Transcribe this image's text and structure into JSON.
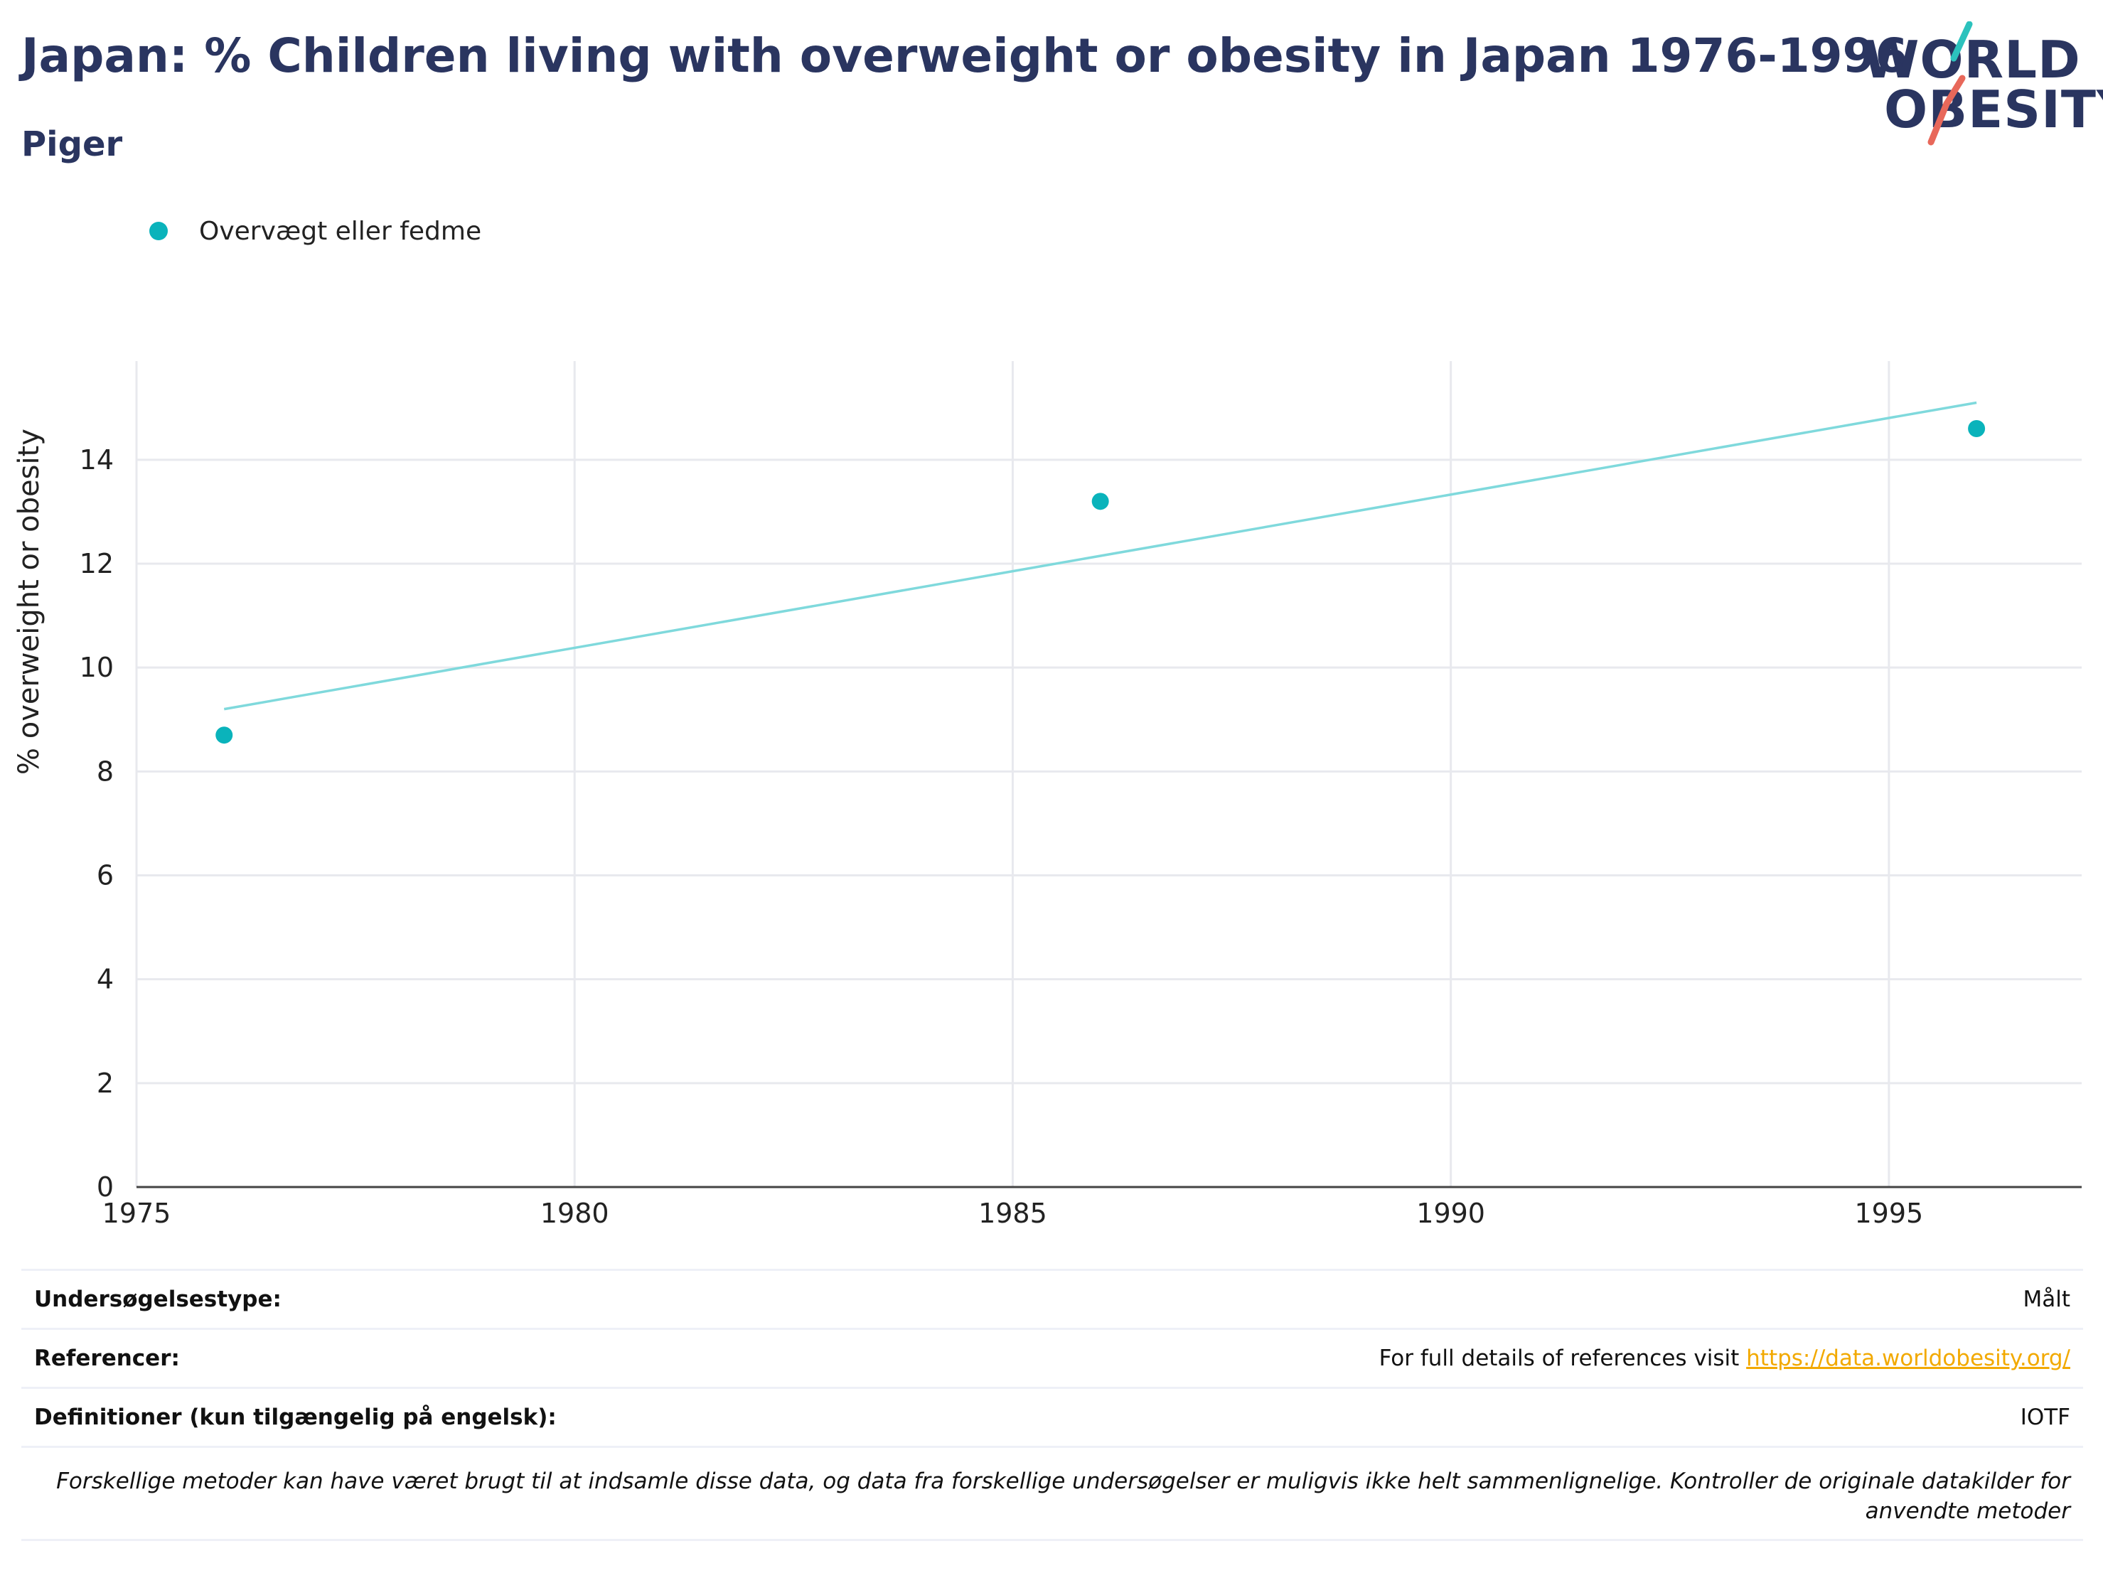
{
  "header": {
    "title": "Japan: % Children living with overweight or obesity in Japan 1976-1996",
    "subtitle": "Piger"
  },
  "logo": {
    "line1": "WORLD",
    "line2": "OBESITY"
  },
  "legend": {
    "label": "Overvægt eller fedme",
    "color": "#0ab3bb"
  },
  "chart_data": {
    "type": "scatter",
    "title": "Japan: % Children living with overweight or obesity in Japan 1976-1996",
    "subtitle": "Piger",
    "xlabel": "",
    "ylabel": "% overweight or obesity",
    "xlim": [
      1975,
      1997.2
    ],
    "ylim": [
      0,
      15.9
    ],
    "xticks": [
      1975,
      1980,
      1985,
      1990,
      1995
    ],
    "yticks": [
      0,
      2,
      4,
      6,
      8,
      10,
      12,
      14
    ],
    "grid": true,
    "legend_position": "top-left",
    "series": [
      {
        "name": "Overvægt eller fedme",
        "color": "#0ab3bb",
        "x": [
          1976,
          1986,
          1996
        ],
        "y": [
          8.7,
          13.2,
          14.6
        ]
      }
    ],
    "trendline": {
      "color": "#7fd9dc",
      "x": [
        1976,
        1996
      ],
      "y": [
        9.2,
        15.1
      ]
    }
  },
  "table": {
    "rows": [
      {
        "key": "Undersøgelsestype:",
        "value": "Målt"
      },
      {
        "key": "Referencer:",
        "value_prefix": "For full details of references visit ",
        "link": "https://data.worldobesity.org/"
      },
      {
        "key": "Definitioner (kun tilgængelig på engelsk):",
        "value": "IOTF"
      }
    ],
    "note": "Forskellige metoder kan have været brugt til at indsamle disse data, og data fra forskellige undersøgelser er muligvis ikke helt sammenlignelige. Kontroller de originale datakilder for anvendte metoder"
  }
}
